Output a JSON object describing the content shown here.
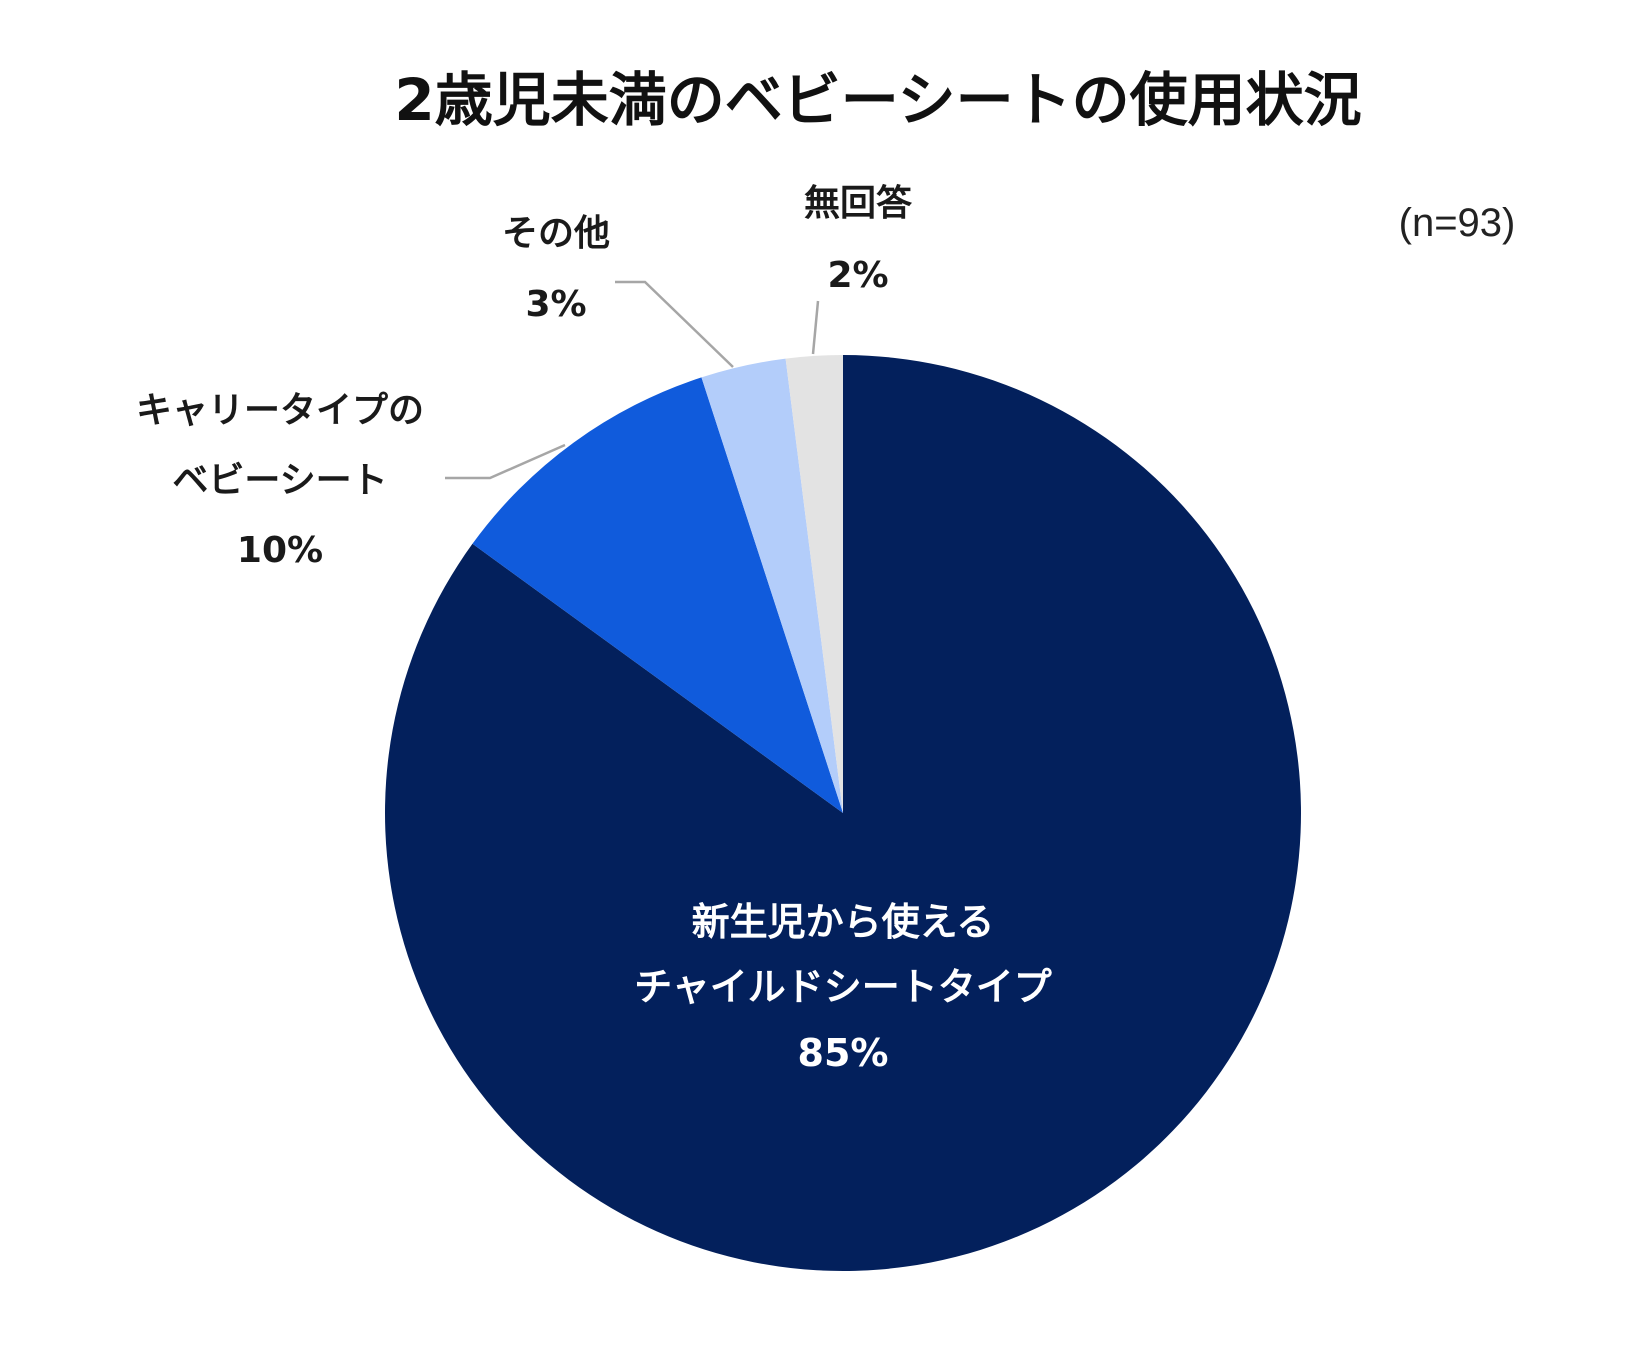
{
  "chart_data": {
    "type": "pie",
    "title": "2歳児未満のベビーシートの使用状況",
    "note": "(n=93)",
    "slices": [
      {
        "label_lines": [
          "新生児から使える",
          "チャイルドシートタイプ"
        ],
        "value": 85,
        "value_label": "85%",
        "color": "#03205c"
      },
      {
        "label_lines": [
          "キャリータイプの",
          "ベビーシート"
        ],
        "value": 10,
        "value_label": "10%",
        "color": "#105bdc"
      },
      {
        "label_lines": [
          "その他"
        ],
        "value": 3,
        "value_label": "3%",
        "color": "#b3cdfa"
      },
      {
        "label_lines": [
          "無回答"
        ],
        "value": 2,
        "value_label": "2%",
        "color": "#e3e3e3"
      }
    ]
  }
}
